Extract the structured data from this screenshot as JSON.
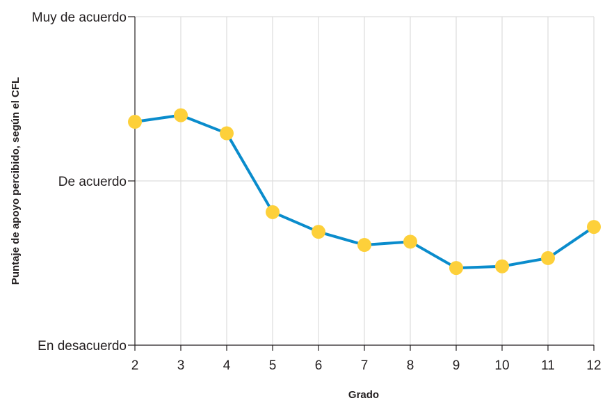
{
  "chart_data": {
    "type": "line",
    "title": "",
    "xlabel": "Grado",
    "ylabel": "Puntaje de apoyo percibido, según el CFL",
    "x": [
      2,
      3,
      4,
      5,
      6,
      7,
      8,
      9,
      10,
      11,
      12
    ],
    "x_tick_labels": [
      "2",
      "3",
      "4",
      "5",
      "6",
      "7",
      "8",
      "9",
      "10",
      "11",
      "12"
    ],
    "xlim": [
      2,
      12
    ],
    "ylim": [
      0,
      2
    ],
    "y_ticks": [
      {
        "value": 0,
        "label": "En desacuerdo"
      },
      {
        "value": 1,
        "label": "De acuerdo"
      },
      {
        "value": 2,
        "label": "Muy de acuerdo"
      }
    ],
    "grid": "vertical and horizontal",
    "series": [
      {
        "values": [
          1.36,
          1.4,
          1.29,
          0.81,
          0.69,
          0.61,
          0.63,
          0.47,
          0.48,
          0.53,
          0.72
        ]
      }
    ],
    "colors": {
      "line": "#0a8ccc",
      "marker": "#fdd03a",
      "grid": "#dddddd",
      "axis": "#231f20"
    }
  }
}
